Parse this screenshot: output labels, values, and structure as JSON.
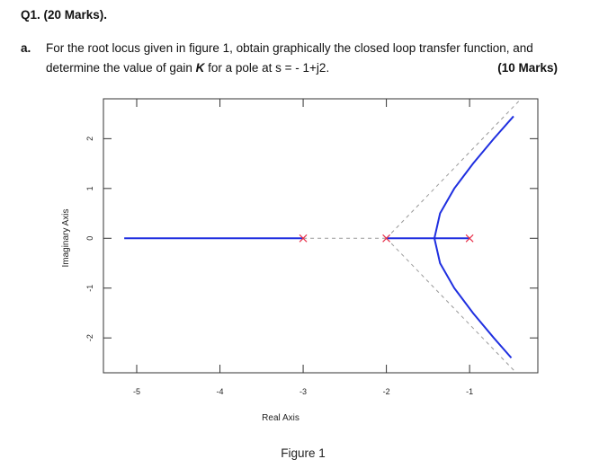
{
  "question": {
    "title": "Q1. (20 Marks).",
    "part_label": "a.",
    "line1": "For the root locus given in figure 1, obtain graphically the closed loop transfer function, and",
    "line2_before": "determine the value of gain ",
    "line2_k": "K",
    "line2_after": " for a pole at s = - 1+j2.",
    "marks": "(10 Marks)"
  },
  "chart_data": {
    "type": "rootlocus",
    "x_label": "Real Axis",
    "y_label": "Imaginary Axis",
    "xlim": [
      -5.4,
      -0.18
    ],
    "ylim": [
      -2.7,
      2.8
    ],
    "xticks": [
      -5,
      -4,
      -3,
      -2,
      -1
    ],
    "yticks": [
      2,
      1,
      0,
      -1,
      -2
    ],
    "series": [
      {
        "color": "#1f2fe0",
        "style": "solid",
        "x": [
          -5.15,
          -3
        ],
        "y": [
          0,
          0
        ]
      },
      {
        "color": "#1f2fe0",
        "style": "solid",
        "x": [
          -2,
          -1
        ],
        "y": [
          0,
          0
        ]
      },
      {
        "color": "#1f2fe0",
        "style": "solid",
        "x": [
          -1.423,
          -1.355,
          -1.184,
          -0.959,
          -0.709,
          -0.472
        ],
        "y": [
          0,
          0.5,
          1,
          1.5,
          2,
          2.45
        ]
      },
      {
        "color": "#1f2fe0",
        "style": "solid",
        "x": [
          -1.423,
          -1.355,
          -1.184,
          -0.959,
          -0.709,
          -0.499
        ],
        "y": [
          0,
          -0.5,
          -1,
          -1.5,
          -2,
          -2.4
        ]
      },
      {
        "color": "#999999",
        "style": "dashed",
        "x": [
          -3,
          -2
        ],
        "y": [
          0,
          0
        ]
      },
      {
        "color": "#999999",
        "style": "dashed",
        "x": [
          -2,
          -0.41
        ],
        "y": [
          0,
          2.75
        ]
      },
      {
        "color": "#999999",
        "style": "dashed",
        "x": [
          -2,
          -0.44
        ],
        "y": [
          0,
          -2.7
        ]
      }
    ],
    "poles": {
      "color": "#e8304a",
      "x": [
        -3,
        -2,
        -1
      ],
      "y": [
        0,
        0,
        0
      ]
    }
  },
  "caption": "Figure 1"
}
